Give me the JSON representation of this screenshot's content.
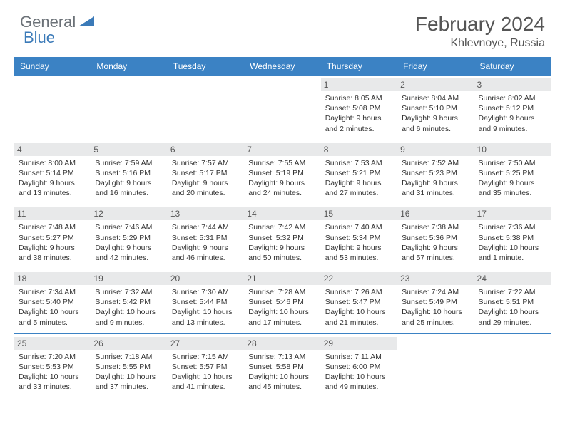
{
  "logo": {
    "textGray": "General",
    "textBlue": "Blue"
  },
  "title": "February 2024",
  "location": "Khlevnoye, Russia",
  "dayNames": [
    "Sunday",
    "Monday",
    "Tuesday",
    "Wednesday",
    "Thursday",
    "Friday",
    "Saturday"
  ],
  "colors": {
    "headerBar": "#3b82c4",
    "dayNumBg": "#e8e9ea",
    "logoGray": "#6b7177",
    "logoBlue": "#3b7ab8"
  },
  "firstDayOffset": 4,
  "days": [
    {
      "n": 1,
      "sunrise": "8:05 AM",
      "sunset": "5:08 PM",
      "daylight": "9 hours and 2 minutes."
    },
    {
      "n": 2,
      "sunrise": "8:04 AM",
      "sunset": "5:10 PM",
      "daylight": "9 hours and 6 minutes."
    },
    {
      "n": 3,
      "sunrise": "8:02 AM",
      "sunset": "5:12 PM",
      "daylight": "9 hours and 9 minutes."
    },
    {
      "n": 4,
      "sunrise": "8:00 AM",
      "sunset": "5:14 PM",
      "daylight": "9 hours and 13 minutes."
    },
    {
      "n": 5,
      "sunrise": "7:59 AM",
      "sunset": "5:16 PM",
      "daylight": "9 hours and 16 minutes."
    },
    {
      "n": 6,
      "sunrise": "7:57 AM",
      "sunset": "5:17 PM",
      "daylight": "9 hours and 20 minutes."
    },
    {
      "n": 7,
      "sunrise": "7:55 AM",
      "sunset": "5:19 PM",
      "daylight": "9 hours and 24 minutes."
    },
    {
      "n": 8,
      "sunrise": "7:53 AM",
      "sunset": "5:21 PM",
      "daylight": "9 hours and 27 minutes."
    },
    {
      "n": 9,
      "sunrise": "7:52 AM",
      "sunset": "5:23 PM",
      "daylight": "9 hours and 31 minutes."
    },
    {
      "n": 10,
      "sunrise": "7:50 AM",
      "sunset": "5:25 PM",
      "daylight": "9 hours and 35 minutes."
    },
    {
      "n": 11,
      "sunrise": "7:48 AM",
      "sunset": "5:27 PM",
      "daylight": "9 hours and 38 minutes."
    },
    {
      "n": 12,
      "sunrise": "7:46 AM",
      "sunset": "5:29 PM",
      "daylight": "9 hours and 42 minutes."
    },
    {
      "n": 13,
      "sunrise": "7:44 AM",
      "sunset": "5:31 PM",
      "daylight": "9 hours and 46 minutes."
    },
    {
      "n": 14,
      "sunrise": "7:42 AM",
      "sunset": "5:32 PM",
      "daylight": "9 hours and 50 minutes."
    },
    {
      "n": 15,
      "sunrise": "7:40 AM",
      "sunset": "5:34 PM",
      "daylight": "9 hours and 53 minutes."
    },
    {
      "n": 16,
      "sunrise": "7:38 AM",
      "sunset": "5:36 PM",
      "daylight": "9 hours and 57 minutes."
    },
    {
      "n": 17,
      "sunrise": "7:36 AM",
      "sunset": "5:38 PM",
      "daylight": "10 hours and 1 minute."
    },
    {
      "n": 18,
      "sunrise": "7:34 AM",
      "sunset": "5:40 PM",
      "daylight": "10 hours and 5 minutes."
    },
    {
      "n": 19,
      "sunrise": "7:32 AM",
      "sunset": "5:42 PM",
      "daylight": "10 hours and 9 minutes."
    },
    {
      "n": 20,
      "sunrise": "7:30 AM",
      "sunset": "5:44 PM",
      "daylight": "10 hours and 13 minutes."
    },
    {
      "n": 21,
      "sunrise": "7:28 AM",
      "sunset": "5:46 PM",
      "daylight": "10 hours and 17 minutes."
    },
    {
      "n": 22,
      "sunrise": "7:26 AM",
      "sunset": "5:47 PM",
      "daylight": "10 hours and 21 minutes."
    },
    {
      "n": 23,
      "sunrise": "7:24 AM",
      "sunset": "5:49 PM",
      "daylight": "10 hours and 25 minutes."
    },
    {
      "n": 24,
      "sunrise": "7:22 AM",
      "sunset": "5:51 PM",
      "daylight": "10 hours and 29 minutes."
    },
    {
      "n": 25,
      "sunrise": "7:20 AM",
      "sunset": "5:53 PM",
      "daylight": "10 hours and 33 minutes."
    },
    {
      "n": 26,
      "sunrise": "7:18 AM",
      "sunset": "5:55 PM",
      "daylight": "10 hours and 37 minutes."
    },
    {
      "n": 27,
      "sunrise": "7:15 AM",
      "sunset": "5:57 PM",
      "daylight": "10 hours and 41 minutes."
    },
    {
      "n": 28,
      "sunrise": "7:13 AM",
      "sunset": "5:58 PM",
      "daylight": "10 hours and 45 minutes."
    },
    {
      "n": 29,
      "sunrise": "7:11 AM",
      "sunset": "6:00 PM",
      "daylight": "10 hours and 49 minutes."
    }
  ],
  "labels": {
    "sunrise": "Sunrise: ",
    "sunset": "Sunset: ",
    "daylight": "Daylight: "
  }
}
